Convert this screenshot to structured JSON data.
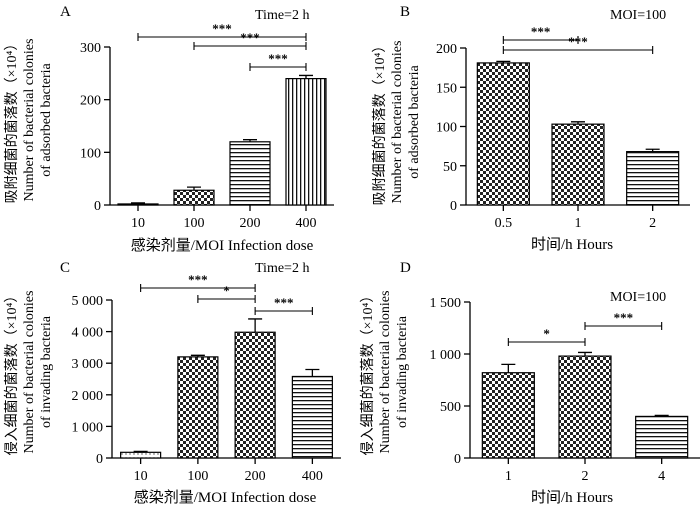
{
  "chart_data": [
    {
      "type": "bar",
      "panel_label": "A",
      "condition": "Time=2 h",
      "categories": [
        "10",
        "100",
        "200",
        "400"
      ],
      "values": [
        2,
        28,
        120,
        240
      ],
      "errors": [
        2,
        6,
        4,
        6
      ],
      "patterns": [
        "dots",
        "checker",
        "hlines",
        "vlines"
      ],
      "ylim": [
        0,
        300
      ],
      "yticks": [
        "0",
        "100",
        "200",
        "300"
      ],
      "xlabel": "感染剂量/MOI Infection dose",
      "ylabel": [
        "吸附细菌的菌落数（×10⁴）",
        "Number of bacterial colonies",
        "of adsorbed bacteria"
      ],
      "significance": [
        {
          "from": 0,
          "to": 3,
          "label": "***"
        },
        {
          "from": 1,
          "to": 3,
          "label": "***"
        },
        {
          "from": 2,
          "to": 3,
          "label": "***"
        }
      ]
    },
    {
      "type": "bar",
      "panel_label": "B",
      "condition": "MOI=100",
      "categories": [
        "0.5",
        "1",
        "2"
      ],
      "values": [
        181,
        103,
        68
      ],
      "errors": [
        2,
        3,
        3
      ],
      "patterns": [
        "checker",
        "checker",
        "hlines"
      ],
      "ylim": [
        0,
        200
      ],
      "yticks": [
        "0",
        "50",
        "100",
        "150",
        "200"
      ],
      "xlabel": "时间/h Hours",
      "ylabel": [
        "吸附细菌的菌落数（×10⁴）",
        "Number of bacterial colonies",
        "of adsorbed bacteria"
      ],
      "significance": [
        {
          "from": 0,
          "to": 1,
          "label": "***"
        },
        {
          "from": 0,
          "to": 2,
          "label": "***"
        }
      ]
    },
    {
      "type": "bar",
      "panel_label": "C",
      "condition": "Time=2 h",
      "categories": [
        "10",
        "100",
        "200",
        "400"
      ],
      "values": [
        180,
        3200,
        3980,
        2580
      ],
      "errors": [
        30,
        50,
        420,
        220
      ],
      "patterns": [
        "dots",
        "checker",
        "checker",
        "hlines"
      ],
      "ylim": [
        0,
        5000
      ],
      "yticks": [
        "0",
        "1 000",
        "2 000",
        "3 000",
        "4 000",
        "5 000"
      ],
      "xlabel": "感染剂量/MOI Infection dose",
      "ylabel": [
        "侵入细菌的菌落数（×10⁴）",
        "Number of bacterial colonies",
        "of invading bacteria"
      ],
      "significance": [
        {
          "from": 0,
          "to": 2,
          "label": "***"
        },
        {
          "from": 1,
          "to": 2,
          "label": "*"
        },
        {
          "from": 2,
          "to": 3,
          "label": "***"
        }
      ]
    },
    {
      "type": "bar",
      "panel_label": "D",
      "condition": "MOI=100",
      "categories": [
        "1",
        "2",
        "4"
      ],
      "values": [
        820,
        980,
        400
      ],
      "errors": [
        80,
        35,
        10
      ],
      "patterns": [
        "checker",
        "checker",
        "hlines"
      ],
      "ylim": [
        0,
        1500
      ],
      "yticks": [
        "0",
        "500",
        "1 000",
        "1 500"
      ],
      "xlabel": "时间/h Hours",
      "ylabel": [
        "侵入细菌的菌落数（×10⁴）",
        "Number of bacterial colonies",
        "of invading bacteria"
      ],
      "significance": [
        {
          "from": 0,
          "to": 1,
          "label": "*"
        },
        {
          "from": 1,
          "to": 2,
          "label": "***"
        }
      ]
    }
  ]
}
